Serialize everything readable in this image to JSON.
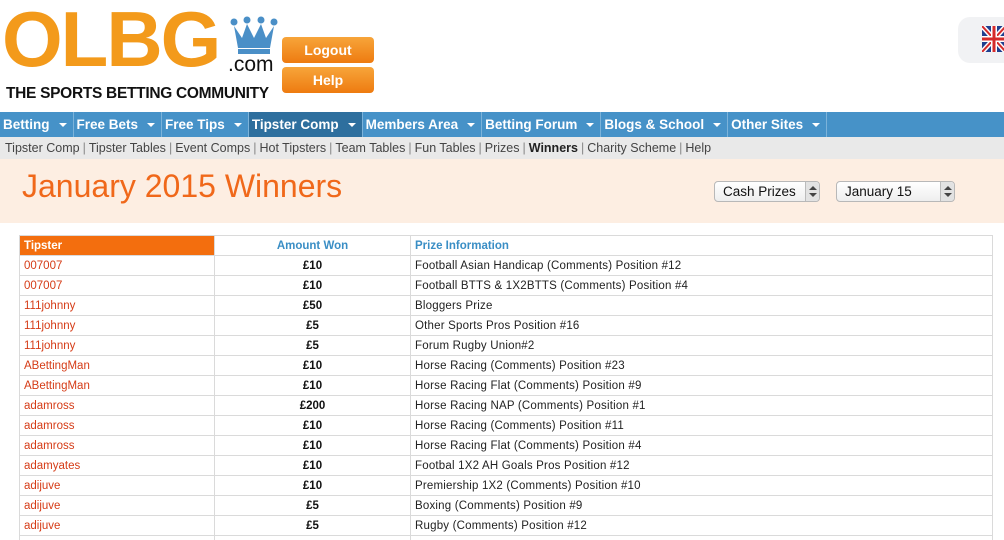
{
  "header": {
    "logo_text": "OLBG",
    "logo_com": ".com",
    "tagline": "THE SPORTS BETTING COMMUNITY",
    "logout_label": "Logout",
    "help_label": "Help",
    "flag_icon": "uk-flag-icon"
  },
  "nav": {
    "items": [
      {
        "label": "Betting"
      },
      {
        "label": "Free Bets"
      },
      {
        "label": "Free Tips"
      },
      {
        "label": "Tipster Comp"
      },
      {
        "label": "Members Area"
      },
      {
        "label": "Betting Forum"
      },
      {
        "label": "Blogs & School"
      },
      {
        "label": "Other Sites"
      }
    ],
    "active_index": 3
  },
  "subnav": {
    "items": [
      {
        "label": "Tipster Comp"
      },
      {
        "label": "Tipster Tables"
      },
      {
        "label": "Event Comps"
      },
      {
        "label": "Hot Tipsters"
      },
      {
        "label": "Team Tables"
      },
      {
        "label": "Fun Tables"
      },
      {
        "label": "Prizes"
      },
      {
        "label": "Winners"
      },
      {
        "label": "Charity Scheme"
      },
      {
        "label": "Help"
      }
    ],
    "current_index": 7
  },
  "page": {
    "title": "January 2015 Winners",
    "prize_type_select": "Cash Prizes",
    "month_select": "January 15"
  },
  "colors": {
    "brand_orange": "#f39a1b",
    "nav_blue": "#4692c8",
    "title_orange": "#f0681a",
    "tipster_red": "#d53b16"
  },
  "table": {
    "headers": {
      "tipster": "Tipster",
      "amount": "Amount Won",
      "info": "Prize Information"
    },
    "rows": [
      {
        "tipster": "007007",
        "amount": "£10",
        "info": "Football Asian Handicap (Comments) Position #12"
      },
      {
        "tipster": "007007",
        "amount": "£10",
        "info": "Football BTTS & 1X2BTTS (Comments) Position #4"
      },
      {
        "tipster": "111johnny",
        "amount": "£50",
        "info": "Bloggers Prize"
      },
      {
        "tipster": "111johnny",
        "amount": "£5",
        "info": "Other Sports Pros Position #16"
      },
      {
        "tipster": "111johnny",
        "amount": "£5",
        "info": "Forum Rugby Union#2"
      },
      {
        "tipster": "ABettingMan",
        "amount": "£10",
        "info": "Horse Racing (Comments) Position #23"
      },
      {
        "tipster": "ABettingMan",
        "amount": "£10",
        "info": "Horse Racing Flat (Comments) Position #9"
      },
      {
        "tipster": "adamross",
        "amount": "£200",
        "info": "Horse Racing NAP (Comments) Position #1"
      },
      {
        "tipster": "adamross",
        "amount": "£10",
        "info": "Horse Racing (Comments) Position #11"
      },
      {
        "tipster": "adamross",
        "amount": "£10",
        "info": "Horse Racing Flat (Comments) Position #4"
      },
      {
        "tipster": "adamyates",
        "amount": "£10",
        "info": "Footbal 1X2 AH Goals Pros Position #12"
      },
      {
        "tipster": "adijuve",
        "amount": "£10",
        "info": "Premiership 1X2 (Comments) Position #10"
      },
      {
        "tipster": "adijuve",
        "amount": "£5",
        "info": "Boxing (Comments) Position #9"
      },
      {
        "tipster": "adijuve",
        "amount": "£5",
        "info": "Rugby (Comments) Position #12"
      },
      {
        "tipster": "",
        "amount": "",
        "info": ""
      }
    ]
  }
}
